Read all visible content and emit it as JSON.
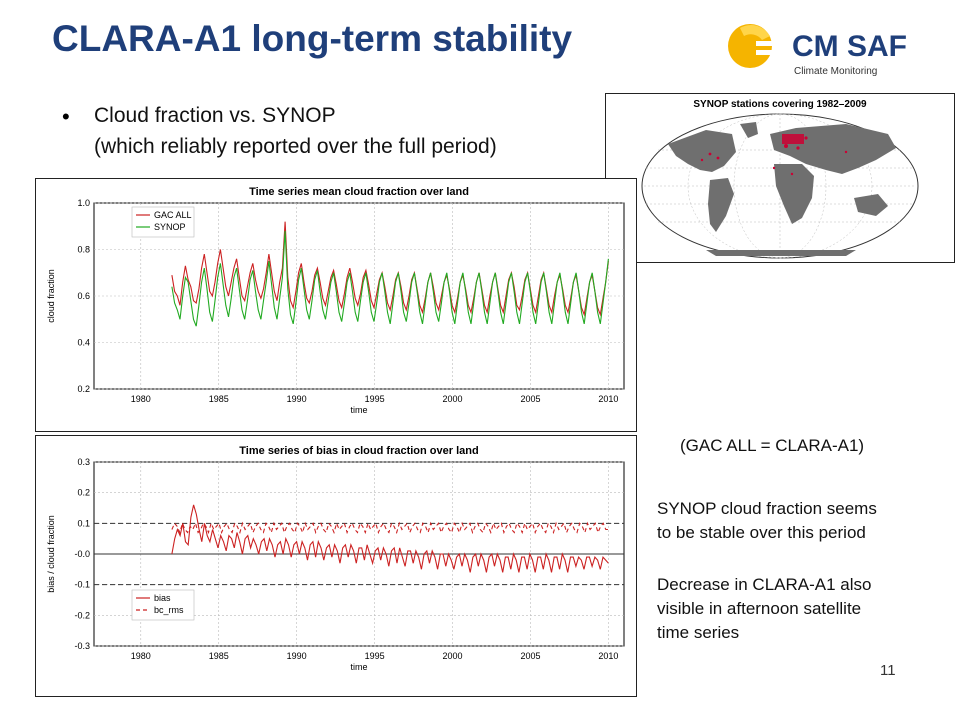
{
  "slide": {
    "title": "CLARA-A1 long-term stability",
    "bullet_line1": "Cloud fraction vs. SYNOP",
    "bullet_line2": "(which reliably reported over the full period)",
    "page_number": "11",
    "logo_text": "CM SAF",
    "logo_sub": "Climate Monitoring",
    "note": "(GAC ALL = CLARA-A1)",
    "text1_line1": "SYNOP cloud fraction seems",
    "text1_line2": "to be stable over this period",
    "text2_line1": "Decrease in CLARA-A1 also",
    "text2_line2": "visible in afternoon satellite",
    "text2_line3": "time series"
  },
  "map": {
    "title": "SYNOP stations covering 1982–2009",
    "land_color": "#6f6f6f",
    "station_color": "#cc0033"
  },
  "chart_data": [
    {
      "type": "line",
      "title": "Time series mean cloud fraction over land",
      "xlabel": "time",
      "ylabel": "cloud fraction",
      "xlim": [
        1977,
        2011
      ],
      "ylim": [
        0.2,
        1.0
      ],
      "xticks": [
        1980,
        1985,
        1990,
        1995,
        2000,
        2005,
        2010
      ],
      "yticks": [
        0.2,
        0.4,
        0.6,
        0.8,
        1.0
      ],
      "ytick_labels": [
        "0.2",
        "0.4",
        "0.6",
        "0.8",
        "1.0"
      ],
      "grid": true,
      "legend": "top-left",
      "x_start": 1982.0,
      "x_end": 2010.0,
      "series": [
        {
          "name": "GAC ALL",
          "color": "#cc2222",
          "dash": "",
          "values": [
            0.69,
            0.62,
            0.6,
            0.56,
            0.66,
            0.73,
            0.67,
            0.64,
            0.58,
            0.57,
            0.63,
            0.72,
            0.78,
            0.7,
            0.62,
            0.6,
            0.66,
            0.74,
            0.8,
            0.72,
            0.64,
            0.6,
            0.66,
            0.72,
            0.76,
            0.68,
            0.6,
            0.58,
            0.64,
            0.7,
            0.74,
            0.67,
            0.62,
            0.59,
            0.63,
            0.7,
            0.78,
            0.7,
            0.62,
            0.58,
            0.66,
            0.72,
            0.92,
            0.68,
            0.58,
            0.55,
            0.62,
            0.7,
            0.74,
            0.66,
            0.59,
            0.57,
            0.62,
            0.69,
            0.72,
            0.66,
            0.59,
            0.56,
            0.62,
            0.68,
            0.71,
            0.65,
            0.58,
            0.55,
            0.61,
            0.68,
            0.72,
            0.66,
            0.59,
            0.56,
            0.61,
            0.68,
            0.71,
            0.65,
            0.58,
            0.55,
            0.61,
            0.67,
            0.7,
            0.64,
            0.57,
            0.54,
            0.6,
            0.67,
            0.7,
            0.64,
            0.57,
            0.54,
            0.6,
            0.67,
            0.7,
            0.63,
            0.56,
            0.53,
            0.59,
            0.66,
            0.7,
            0.64,
            0.57,
            0.54,
            0.6,
            0.66,
            0.69,
            0.63,
            0.56,
            0.53,
            0.59,
            0.66,
            0.69,
            0.63,
            0.56,
            0.53,
            0.59,
            0.66,
            0.7,
            0.63,
            0.56,
            0.53,
            0.6,
            0.66,
            0.7,
            0.63,
            0.56,
            0.53,
            0.6,
            0.67,
            0.7,
            0.64,
            0.56,
            0.54,
            0.6,
            0.67,
            0.7,
            0.63,
            0.56,
            0.53,
            0.6,
            0.67,
            0.7,
            0.63,
            0.56,
            0.53,
            0.6,
            0.66,
            0.69,
            0.63,
            0.56,
            0.53,
            0.59,
            0.66,
            0.69,
            0.62,
            0.55,
            0.52,
            0.59,
            0.66,
            0.69,
            0.62,
            0.55,
            0.52,
            0.59,
            0.66,
            0.75
          ]
        },
        {
          "name": "SYNOP",
          "color": "#22aa22",
          "dash": "",
          "values": [
            0.64,
            0.57,
            0.54,
            0.5,
            0.6,
            0.68,
            0.66,
            0.58,
            0.5,
            0.47,
            0.56,
            0.66,
            0.72,
            0.63,
            0.53,
            0.49,
            0.58,
            0.68,
            0.74,
            0.65,
            0.56,
            0.51,
            0.59,
            0.68,
            0.72,
            0.63,
            0.54,
            0.5,
            0.58,
            0.67,
            0.71,
            0.62,
            0.54,
            0.5,
            0.58,
            0.66,
            0.75,
            0.65,
            0.55,
            0.5,
            0.59,
            0.68,
            0.88,
            0.63,
            0.52,
            0.48,
            0.57,
            0.67,
            0.72,
            0.63,
            0.54,
            0.5,
            0.58,
            0.67,
            0.71,
            0.62,
            0.54,
            0.5,
            0.58,
            0.66,
            0.7,
            0.62,
            0.53,
            0.49,
            0.57,
            0.66,
            0.7,
            0.62,
            0.53,
            0.49,
            0.58,
            0.66,
            0.7,
            0.62,
            0.53,
            0.49,
            0.57,
            0.66,
            0.7,
            0.62,
            0.53,
            0.48,
            0.57,
            0.66,
            0.7,
            0.62,
            0.53,
            0.49,
            0.57,
            0.66,
            0.7,
            0.62,
            0.53,
            0.48,
            0.57,
            0.66,
            0.7,
            0.62,
            0.53,
            0.49,
            0.57,
            0.66,
            0.7,
            0.62,
            0.53,
            0.48,
            0.57,
            0.66,
            0.7,
            0.62,
            0.53,
            0.48,
            0.57,
            0.66,
            0.7,
            0.62,
            0.53,
            0.48,
            0.57,
            0.66,
            0.7,
            0.62,
            0.53,
            0.48,
            0.57,
            0.66,
            0.7,
            0.62,
            0.53,
            0.48,
            0.57,
            0.66,
            0.7,
            0.62,
            0.53,
            0.48,
            0.57,
            0.66,
            0.7,
            0.62,
            0.53,
            0.48,
            0.57,
            0.66,
            0.7,
            0.62,
            0.53,
            0.48,
            0.57,
            0.66,
            0.7,
            0.62,
            0.53,
            0.48,
            0.57,
            0.66,
            0.7,
            0.62,
            0.53,
            0.48,
            0.57,
            0.66,
            0.76
          ]
        }
      ]
    },
    {
      "type": "line",
      "title": "Time series of bias in cloud fraction over land",
      "xlabel": "time",
      "ylabel": "bias / cloud fraction",
      "xlim": [
        1977,
        2011
      ],
      "ylim": [
        -0.3,
        0.3
      ],
      "xticks": [
        1980,
        1985,
        1990,
        1995,
        2000,
        2005,
        2010
      ],
      "yticks": [
        -0.3,
        -0.2,
        -0.1,
        0.0,
        0.1,
        0.2,
        0.3
      ],
      "ytick_labels": [
        "-0.3",
        "-0.2",
        "-0.1",
        "-0.0",
        "0.1",
        "0.2",
        "0.3"
      ],
      "hlines": [
        0.1,
        0.0,
        -0.1
      ],
      "grid": true,
      "legend": "bottom-left",
      "x_start": 1982.0,
      "x_end": 2010.0,
      "series": [
        {
          "name": "bias",
          "color": "#cc2222",
          "dash": "",
          "values": [
            0.0,
            0.05,
            0.08,
            0.06,
            0.1,
            0.04,
            0.03,
            0.12,
            0.16,
            0.13,
            0.08,
            0.04,
            0.1,
            0.06,
            0.04,
            0.08,
            0.05,
            0.02,
            0.06,
            0.04,
            0.01,
            0.06,
            0.05,
            0.02,
            0.07,
            0.04,
            0.0,
            0.05,
            0.06,
            0.02,
            0.05,
            0.03,
            0.0,
            0.04,
            0.05,
            0.01,
            0.05,
            0.03,
            -0.01,
            0.03,
            0.04,
            0.0,
            0.05,
            0.03,
            -0.01,
            0.03,
            0.04,
            0.0,
            0.04,
            0.02,
            -0.02,
            0.03,
            0.04,
            -0.01,
            0.04,
            0.02,
            -0.02,
            0.02,
            0.03,
            -0.01,
            0.03,
            0.01,
            -0.03,
            0.02,
            0.03,
            -0.01,
            0.03,
            0.01,
            -0.03,
            0.02,
            0.02,
            -0.02,
            0.03,
            0.0,
            -0.03,
            0.01,
            0.02,
            -0.02,
            0.02,
            0.0,
            -0.04,
            0.01,
            0.02,
            -0.03,
            0.02,
            -0.01,
            -0.04,
            0.01,
            0.01,
            -0.03,
            0.01,
            -0.01,
            -0.05,
            0.0,
            0.01,
            -0.03,
            0.01,
            -0.01,
            -0.05,
            0.0,
            0.0,
            -0.04,
            0.0,
            -0.02,
            -0.05,
            -0.01,
            0.0,
            -0.04,
            0.0,
            -0.02,
            -0.06,
            -0.01,
            0.0,
            -0.04,
            0.0,
            -0.02,
            -0.06,
            -0.01,
            0.0,
            -0.04,
            0.0,
            -0.02,
            -0.06,
            -0.01,
            -0.01,
            -0.05,
            0.0,
            -0.02,
            -0.06,
            -0.01,
            -0.01,
            -0.05,
            0.0,
            -0.02,
            -0.06,
            -0.01,
            -0.01,
            -0.05,
            0.0,
            -0.02,
            -0.06,
            -0.01,
            -0.01,
            -0.05,
            0.0,
            -0.02,
            -0.06,
            -0.01,
            -0.01,
            -0.04,
            -0.01,
            -0.02,
            -0.05,
            -0.01,
            -0.01,
            -0.04,
            -0.01,
            -0.02,
            -0.05,
            -0.01,
            -0.02,
            -0.03
          ]
        },
        {
          "name": "bc_rms",
          "color": "#cc2222",
          "dash": "4,3",
          "values": [
            0.08,
            0.1,
            0.09,
            0.07,
            0.1,
            0.08,
            0.07,
            0.09,
            0.08,
            0.1,
            0.07,
            0.08,
            0.1,
            0.09,
            0.07,
            0.1,
            0.08,
            0.09,
            0.1,
            0.07,
            0.09,
            0.1,
            0.08,
            0.07,
            0.1,
            0.09,
            0.07,
            0.1,
            0.08,
            0.09,
            0.1,
            0.07,
            0.09,
            0.1,
            0.08,
            0.07,
            0.1,
            0.09,
            0.07,
            0.1,
            0.08,
            0.09,
            0.1,
            0.07,
            0.09,
            0.1,
            0.08,
            0.07,
            0.1,
            0.09,
            0.07,
            0.1,
            0.08,
            0.09,
            0.1,
            0.07,
            0.09,
            0.1,
            0.08,
            0.07,
            0.1,
            0.09,
            0.07,
            0.1,
            0.08,
            0.09,
            0.1,
            0.07,
            0.09,
            0.1,
            0.08,
            0.07,
            0.1,
            0.09,
            0.07,
            0.1,
            0.08,
            0.09,
            0.1,
            0.07,
            0.09,
            0.1,
            0.08,
            0.07,
            0.1,
            0.09,
            0.07,
            0.1,
            0.08,
            0.09,
            0.1,
            0.07,
            0.09,
            0.1,
            0.08,
            0.07,
            0.1,
            0.09,
            0.07,
            0.1,
            0.08,
            0.09,
            0.1,
            0.07,
            0.09,
            0.1,
            0.08,
            0.07,
            0.1,
            0.09,
            0.07,
            0.1,
            0.08,
            0.09,
            0.1,
            0.07,
            0.09,
            0.1,
            0.08,
            0.07,
            0.1,
            0.09,
            0.07,
            0.1,
            0.08,
            0.09,
            0.1,
            0.07,
            0.09,
            0.1,
            0.08,
            0.07,
            0.1,
            0.09,
            0.07,
            0.1,
            0.08,
            0.09,
            0.1,
            0.07,
            0.09,
            0.1,
            0.08,
            0.07,
            0.1,
            0.09,
            0.07,
            0.1,
            0.08,
            0.09,
            0.1,
            0.07,
            0.09,
            0.1,
            0.08,
            0.07,
            0.1,
            0.09,
            0.07,
            0.1,
            0.08,
            0.09,
            0.1,
            0.07,
            0.09,
            0.1,
            0.08,
            0.08
          ]
        }
      ]
    }
  ]
}
